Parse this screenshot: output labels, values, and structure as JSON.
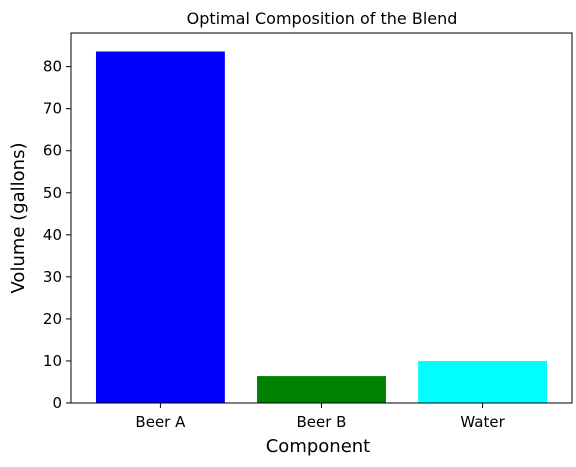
{
  "chart_data": {
    "type": "bar",
    "title": "Optimal Composition of the Blend",
    "xlabel": "Component",
    "ylabel": "Volume (gallons)",
    "categories": [
      "Beer A",
      "Beer B",
      "Water"
    ],
    "values": [
      83.6,
      6.4,
      10.0
    ],
    "colors": [
      "#0000ff",
      "#008000",
      "#00ffff"
    ],
    "ylim": [
      0,
      88
    ],
    "yticks": [
      0,
      10,
      20,
      30,
      40,
      50,
      60,
      70,
      80
    ],
    "grid": false,
    "legend": "none"
  }
}
